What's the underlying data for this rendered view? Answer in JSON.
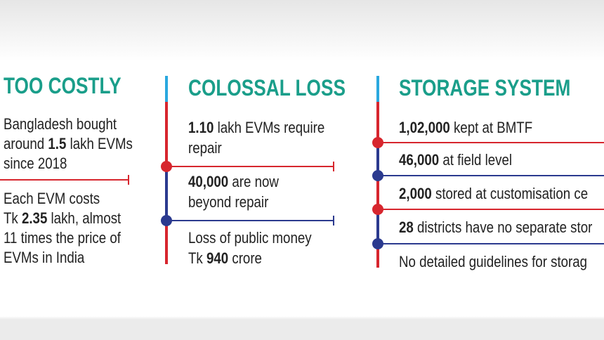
{
  "columns": [
    {
      "heading": "TOO COSTLY",
      "items": [
        {
          "lines": [
            [
              {
                "text": "Bangladesh bought"
              }
            ],
            [
              {
                "text": "around "
              },
              {
                "text": "1.5",
                "bold": true
              },
              {
                "text": " lakh EVMs"
              }
            ],
            [
              {
                "text": "since 2018"
              }
            ]
          ]
        },
        {
          "lines": [
            [
              {
                "text": "Each EVM costs"
              }
            ],
            [
              {
                "text": "Tk "
              },
              {
                "text": "2.35",
                "bold": true
              },
              {
                "text": " lakh, almost"
              }
            ],
            [
              {
                "text": "11 times the price of"
              }
            ],
            [
              {
                "text": "EVMs in India"
              }
            ]
          ]
        }
      ]
    },
    {
      "heading": "COLOSSAL LOSS",
      "items": [
        {
          "lines": [
            [
              {
                "text": "1.10",
                "bold": true
              },
              {
                "text": " lakh EVMs require"
              }
            ],
            [
              {
                "text": "repair"
              }
            ]
          ]
        },
        {
          "lines": [
            [
              {
                "text": "40,000",
                "bold": true
              },
              {
                "text": " are now"
              }
            ],
            [
              {
                "text": "beyond repair"
              }
            ]
          ]
        },
        {
          "lines": [
            [
              {
                "text": "Loss of public money"
              }
            ],
            [
              {
                "text": "Tk "
              },
              {
                "text": "940",
                "bold": true
              },
              {
                "text": " crore"
              }
            ]
          ]
        }
      ]
    },
    {
      "heading": "STORAGE SYSTEM",
      "items": [
        {
          "lines": [
            [
              {
                "text": "1,02,000",
                "bold": true
              },
              {
                "text": " kept at BMTF"
              }
            ]
          ]
        },
        {
          "lines": [
            [
              {
                "text": "46,000",
                "bold": true
              },
              {
                "text": " at field level"
              }
            ]
          ]
        },
        {
          "lines": [
            [
              {
                "text": "2,000",
                "bold": true
              },
              {
                "text": " stored at customisation ce"
              }
            ]
          ]
        },
        {
          "lines": [
            [
              {
                "text": "28",
                "bold": true
              },
              {
                "text": " districts have no separate stor"
              }
            ]
          ]
        },
        {
          "lines": [
            [
              {
                "text": "No detailed guidelines for storag"
              }
            ]
          ]
        }
      ]
    }
  ]
}
